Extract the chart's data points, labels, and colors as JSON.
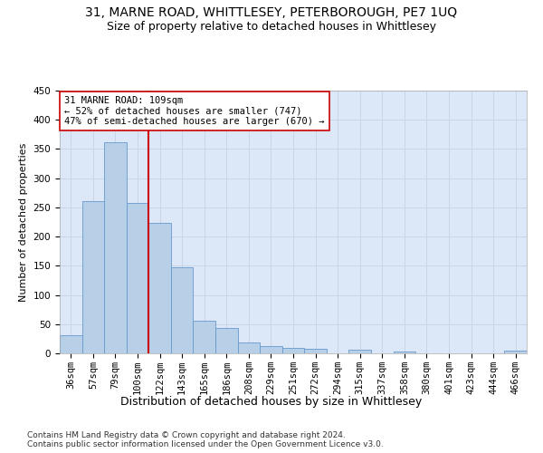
{
  "title1": "31, MARNE ROAD, WHITTLESEY, PETERBOROUGH, PE7 1UQ",
  "title2": "Size of property relative to detached houses in Whittlesey",
  "xlabel": "Distribution of detached houses by size in Whittlesey",
  "ylabel": "Number of detached properties",
  "categories": [
    "36sqm",
    "57sqm",
    "79sqm",
    "100sqm",
    "122sqm",
    "143sqm",
    "165sqm",
    "186sqm",
    "208sqm",
    "229sqm",
    "251sqm",
    "272sqm",
    "294sqm",
    "315sqm",
    "337sqm",
    "358sqm",
    "380sqm",
    "401sqm",
    "423sqm",
    "444sqm",
    "466sqm"
  ],
  "values": [
    31,
    261,
    362,
    257,
    224,
    148,
    56,
    44,
    18,
    12,
    10,
    8,
    0,
    6,
    0,
    3,
    0,
    0,
    0,
    0,
    4
  ],
  "bar_color": "#b8cfe8",
  "bar_edge_color": "#6699cc",
  "vline_x_index": 3,
  "vline_color": "#cc0000",
  "annotation_text": "31 MARNE ROAD: 109sqm\n← 52% of detached houses are smaller (747)\n47% of semi-detached houses are larger (670) →",
  "annotation_box_facecolor": "#ffffff",
  "annotation_box_edgecolor": "#cc0000",
  "ylim": [
    0,
    450
  ],
  "yticks": [
    0,
    50,
    100,
    150,
    200,
    250,
    300,
    350,
    400,
    450
  ],
  "grid_color": "#c8d4e8",
  "background_color": "#dce8f8",
  "footer": "Contains HM Land Registry data © Crown copyright and database right 2024.\nContains public sector information licensed under the Open Government Licence v3.0.",
  "title1_fontsize": 10,
  "title2_fontsize": 9,
  "xlabel_fontsize": 9,
  "ylabel_fontsize": 8,
  "tick_fontsize": 7.5,
  "annot_fontsize": 7.5,
  "footer_fontsize": 6.5
}
